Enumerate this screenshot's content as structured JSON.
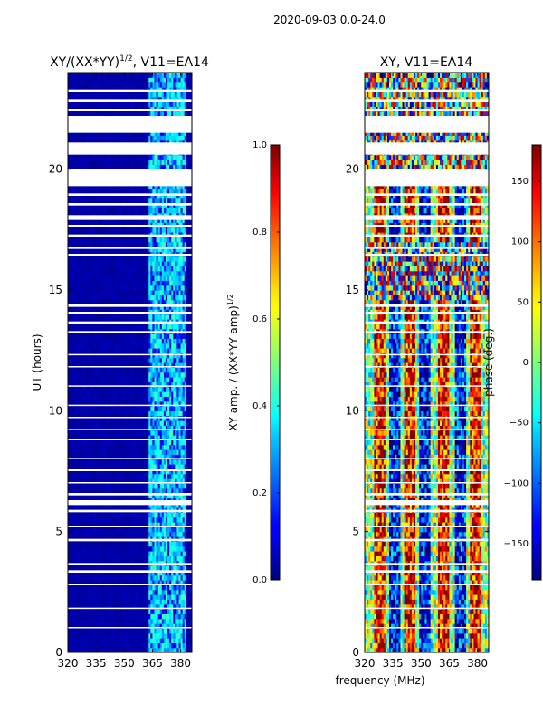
{
  "figure": {
    "suptitle": "2020-09-03 0.0-24.0",
    "shared_xlabel": "frequency (MHz)"
  },
  "chart_data": [
    {
      "type": "heatmap",
      "title": "XY/(XX*YY)",
      "title_exponent": "1/2",
      "title_suffix": ", V11=EA14",
      "xlabel": "",
      "ylabel": "UT (hours)",
      "xlim": [
        320,
        386
      ],
      "ylim": [
        0,
        24
      ],
      "xticks": [
        "320",
        "335",
        "350",
        "365",
        "380"
      ],
      "xtick_values": [
        320,
        335,
        350,
        365,
        380
      ],
      "yticks": [
        "0",
        "5",
        "10",
        "15",
        "20"
      ],
      "ytick_values": [
        0,
        5,
        10,
        15,
        20
      ],
      "colormap": "jet",
      "colorbar": {
        "label": "XY amp. / (XX*YY amp)",
        "label_exponent": "1/2",
        "range": [
          0.0,
          1.0
        ],
        "ticks": [
          "0.0",
          "0.2",
          "0.4",
          "0.6",
          "0.8",
          "1.0"
        ],
        "tick_values": [
          0.0,
          0.2,
          0.4,
          0.6,
          0.8,
          1.0
        ]
      },
      "features": {
        "background_value": 0.02,
        "bright_band_mhz": [
          363,
          383
        ],
        "bright_band_values": [
          0.25,
          0.45
        ]
      },
      "gaps_ut": [
        [
          23.2,
          23.3
        ],
        [
          22.8,
          22.9
        ],
        [
          22.4,
          22.5
        ],
        [
          21.5,
          22.2
        ],
        [
          20.6,
          21.1
        ],
        [
          19.3,
          20.0
        ],
        [
          18.9,
          19.0
        ],
        [
          18.5,
          18.6
        ],
        [
          17.9,
          18.1
        ],
        [
          17.6,
          17.7
        ],
        [
          17.2,
          17.3
        ],
        [
          16.7,
          16.8
        ],
        [
          16.4,
          16.5
        ],
        [
          14.3,
          14.4
        ],
        [
          14.0,
          14.1
        ],
        [
          13.6,
          13.7
        ],
        [
          13.2,
          13.3
        ],
        [
          12.3,
          12.35
        ],
        [
          11.8,
          11.85
        ],
        [
          11.0,
          11.05
        ],
        [
          10.2,
          10.25
        ],
        [
          9.7,
          9.75
        ],
        [
          9.2,
          9.25
        ],
        [
          8.8,
          8.85
        ],
        [
          8.0,
          8.05
        ],
        [
          7.5,
          7.6
        ],
        [
          7.0,
          7.05
        ],
        [
          6.5,
          6.6
        ],
        [
          6.1,
          6.3
        ],
        [
          5.8,
          5.9
        ],
        [
          5.2,
          5.25
        ],
        [
          4.6,
          4.7
        ],
        [
          3.6,
          3.7
        ],
        [
          3.3,
          3.4
        ],
        [
          2.8,
          2.85
        ],
        [
          1.8,
          1.85
        ],
        [
          1.0,
          1.05
        ]
      ]
    },
    {
      "type": "heatmap",
      "title": "XY, V11=EA14",
      "xlabel": "",
      "ylabel": "",
      "xlim": [
        320,
        386
      ],
      "ylim": [
        0,
        24
      ],
      "xticks": [
        "320",
        "335",
        "350",
        "365",
        "380"
      ],
      "xtick_values": [
        320,
        335,
        350,
        365,
        380
      ],
      "yticks": [
        "0",
        "5",
        "10",
        "15",
        "20"
      ],
      "ytick_values": [
        0,
        5,
        10,
        15,
        20
      ],
      "colormap": "jet",
      "colorbar": {
        "label": "phase (deg.)",
        "range": [
          -180,
          180
        ],
        "ticks": [
          "−150",
          "−100",
          "−50",
          "0",
          "50",
          "100",
          "150"
        ],
        "tick_values": [
          -150,
          -100,
          -50,
          0,
          50,
          100,
          150
        ]
      },
      "features": {
        "value_range": [
          -180,
          180
        ],
        "vertical_stripes_mhz": [
          328,
          336,
          344,
          352,
          362,
          371,
          379
        ]
      },
      "gaps_ut": [
        [
          23.2,
          23.3
        ],
        [
          22.8,
          22.9
        ],
        [
          22.4,
          22.5
        ],
        [
          21.5,
          22.2
        ],
        [
          20.6,
          21.1
        ],
        [
          19.3,
          20.0
        ],
        [
          18.9,
          19.0
        ],
        [
          18.5,
          18.6
        ],
        [
          17.9,
          18.1
        ],
        [
          17.6,
          17.7
        ],
        [
          17.2,
          17.3
        ],
        [
          16.7,
          16.8
        ],
        [
          16.4,
          16.5
        ],
        [
          14.3,
          14.4
        ],
        [
          14.0,
          14.1
        ],
        [
          13.6,
          13.7
        ],
        [
          13.2,
          13.3
        ],
        [
          12.3,
          12.35
        ],
        [
          11.8,
          11.85
        ],
        [
          11.0,
          11.05
        ],
        [
          10.2,
          10.25
        ],
        [
          9.7,
          9.75
        ],
        [
          9.2,
          9.25
        ],
        [
          8.8,
          8.85
        ],
        [
          8.0,
          8.05
        ],
        [
          7.5,
          7.6
        ],
        [
          7.0,
          7.05
        ],
        [
          6.5,
          6.6
        ],
        [
          6.1,
          6.3
        ],
        [
          5.8,
          5.9
        ],
        [
          5.2,
          5.25
        ],
        [
          4.6,
          4.7
        ],
        [
          3.6,
          3.7
        ],
        [
          3.3,
          3.4
        ],
        [
          2.8,
          2.85
        ],
        [
          1.8,
          1.85
        ],
        [
          1.0,
          1.05
        ]
      ]
    }
  ]
}
